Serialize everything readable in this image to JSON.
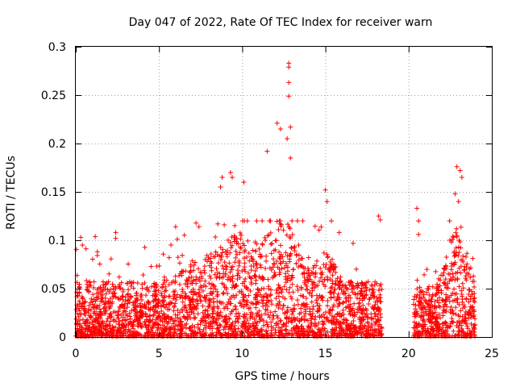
{
  "chart_data": {
    "type": "scatter",
    "title": "Day 047 of 2022, Rate Of TEC Index for receiver warn",
    "xlabel": "GPS time / hours",
    "ylabel": "ROTI / TECUs",
    "xlim": [
      0,
      25
    ],
    "ylim": [
      0,
      0.3
    ],
    "x_ticks": [
      "0",
      "5",
      "10",
      "15",
      "20",
      "25"
    ],
    "y_ticks": [
      "0",
      "0.05",
      "0.1",
      "0.15",
      "0.2",
      "0.25",
      "0.3"
    ],
    "grid": true,
    "marker": "+",
    "color": "#ff0000",
    "data_gap_hours": [
      18.4,
      20.3
    ],
    "series": [
      {
        "name": "ROTI",
        "notable_points": [
          {
            "x": 0.3,
            "y": 0.103
          },
          {
            "x": 0.4,
            "y": 0.095
          },
          {
            "x": 2.4,
            "y": 0.108
          },
          {
            "x": 2.4,
            "y": 0.102
          },
          {
            "x": 6.0,
            "y": 0.114
          },
          {
            "x": 6.1,
            "y": 0.101
          },
          {
            "x": 7.4,
            "y": 0.114
          },
          {
            "x": 8.7,
            "y": 0.155
          },
          {
            "x": 8.8,
            "y": 0.165
          },
          {
            "x": 9.3,
            "y": 0.17
          },
          {
            "x": 9.4,
            "y": 0.165
          },
          {
            "x": 10.1,
            "y": 0.16
          },
          {
            "x": 11.5,
            "y": 0.192
          },
          {
            "x": 12.1,
            "y": 0.221
          },
          {
            "x": 12.3,
            "y": 0.215
          },
          {
            "x": 12.8,
            "y": 0.283
          },
          {
            "x": 12.8,
            "y": 0.279
          },
          {
            "x": 12.8,
            "y": 0.263
          },
          {
            "x": 12.8,
            "y": 0.249
          },
          {
            "x": 12.9,
            "y": 0.217
          },
          {
            "x": 12.7,
            "y": 0.205
          },
          {
            "x": 12.9,
            "y": 0.185
          },
          {
            "x": 15.0,
            "y": 0.152
          },
          {
            "x": 15.1,
            "y": 0.14
          },
          {
            "x": 18.2,
            "y": 0.125
          },
          {
            "x": 18.3,
            "y": 0.121
          },
          {
            "x": 20.5,
            "y": 0.133
          },
          {
            "x": 20.6,
            "y": 0.12
          },
          {
            "x": 20.6,
            "y": 0.106
          },
          {
            "x": 22.9,
            "y": 0.176
          },
          {
            "x": 23.1,
            "y": 0.172
          },
          {
            "x": 23.2,
            "y": 0.165
          },
          {
            "x": 22.8,
            "y": 0.148
          },
          {
            "x": 23.0,
            "y": 0.14
          }
        ]
      }
    ]
  }
}
